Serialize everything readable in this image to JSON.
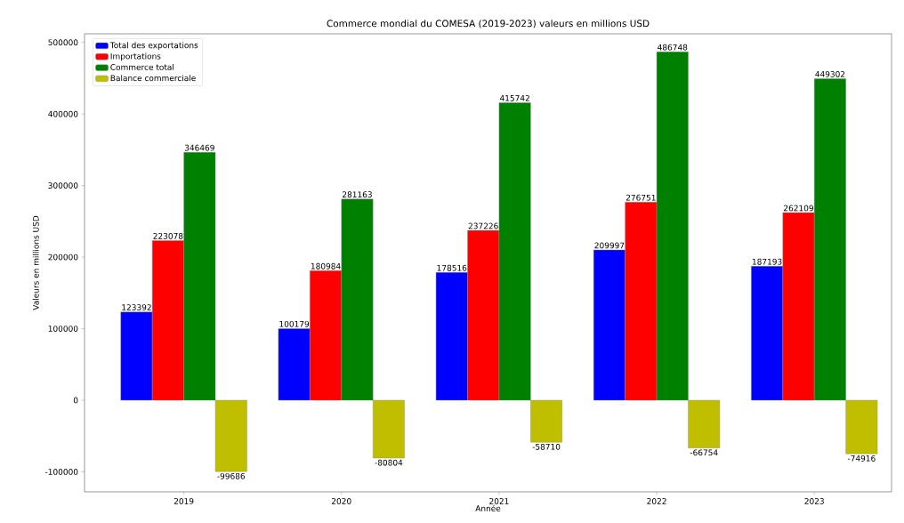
{
  "chart_data": {
    "type": "bar",
    "title": "Commerce mondial du COMESA (2019-2023) valeurs en millions USD",
    "xlabel": "Année",
    "ylabel": "Valeurs en millions USD",
    "categories": [
      "2019",
      "2020",
      "2021",
      "2022",
      "2023"
    ],
    "series": [
      {
        "name": "Total des exportations",
        "color": "#0000ff",
        "values": [
          123392,
          100179,
          178516,
          209997,
          187193
        ]
      },
      {
        "name": "Importations",
        "color": "#ff0000",
        "values": [
          223078,
          180984,
          237226,
          276751,
          262109
        ]
      },
      {
        "name": "Commerce total",
        "color": "#008000",
        "values": [
          346469,
          281163,
          415742,
          486748,
          449302
        ]
      },
      {
        "name": "Balance commerciale",
        "color": "#bfbf00",
        "values": [
          -99686,
          -80804,
          -58710,
          -66754,
          -74916
        ]
      }
    ],
    "ylim": [
      -128000,
      512000
    ],
    "yticks": [
      -100000,
      0,
      100000,
      200000,
      300000,
      400000,
      500000
    ],
    "data_labels": true,
    "legend": "top left",
    "grid": false
  }
}
